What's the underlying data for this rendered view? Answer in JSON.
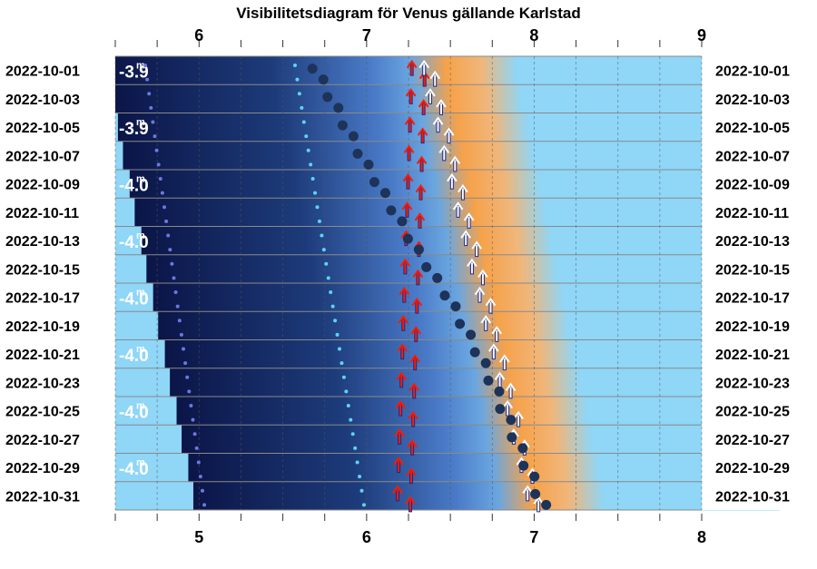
{
  "chart_data": {
    "type": "scatter",
    "title": "Visibilitetsdiagram för Venus gällande Karlstad",
    "x_axis_top": {
      "ticks": [
        6,
        7,
        8,
        9
      ],
      "range": [
        4.5,
        8.0
      ]
    },
    "x_axis_bottom": {
      "ticks": [
        5,
        6,
        7,
        8
      ],
      "range": [
        4.5,
        8.0
      ]
    },
    "dates": [
      "2022-10-01",
      "2022-10-03",
      "2022-10-05",
      "2022-10-07",
      "2022-10-09",
      "2022-10-11",
      "2022-10-13",
      "2022-10-15",
      "2022-10-17",
      "2022-10-19",
      "2022-10-21",
      "2022-10-23",
      "2022-10-25",
      "2022-10-27",
      "2022-10-29",
      "2022-10-31"
    ],
    "magnitudes": [
      {
        "date": "2022-10-01",
        "label": "-3.9"
      },
      {
        "date": "2022-10-05",
        "label": "-3.9"
      },
      {
        "date": "2022-10-09",
        "label": "-4.0"
      },
      {
        "date": "2022-10-13",
        "label": "-4.0"
      },
      {
        "date": "2022-10-17",
        "label": "-4.0"
      },
      {
        "date": "2022-10-21",
        "label": "-4.0"
      },
      {
        "date": "2022-10-25",
        "label": "-4.0"
      },
      {
        "date": "2022-10-29",
        "label": "-4.0"
      }
    ],
    "magnitude_superscript": "m",
    "series": [
      {
        "label": "venus_rise_bottom_axis_time",
        "values": [
          6.27,
          6.26,
          6.25,
          6.24,
          6.23,
          6.22,
          6.21,
          6.2,
          6.19,
          6.18,
          6.17,
          6.16,
          6.15,
          6.14,
          6.13,
          6.12
        ]
      },
      {
        "label": "sun_rise_bottom_axis_time",
        "values": [
          6.56,
          6.59,
          6.63,
          6.66,
          6.7,
          6.73,
          6.77,
          6.8,
          6.84,
          6.87,
          6.91,
          6.94,
          6.98,
          7.01,
          7.05,
          7.08
        ]
      },
      {
        "label": "sun_altitude_dots_top_axis_time",
        "values": [
          7.11,
          7.2,
          7.29,
          7.38,
          7.48,
          7.58,
          7.68,
          7.79,
          7.9,
          7.99,
          8.08,
          8.16,
          8.23,
          8.3,
          8.37,
          8.44
        ]
      }
    ],
    "colors": {
      "night": "#0b1547",
      "twilight": "#4a7bc8",
      "dawn": "#f6a24a",
      "day": "#8fd6f7",
      "sun_dot": "#1d3359",
      "red_arrow": "#ff1a00",
      "white_arrow": "#ffffff"
    }
  }
}
